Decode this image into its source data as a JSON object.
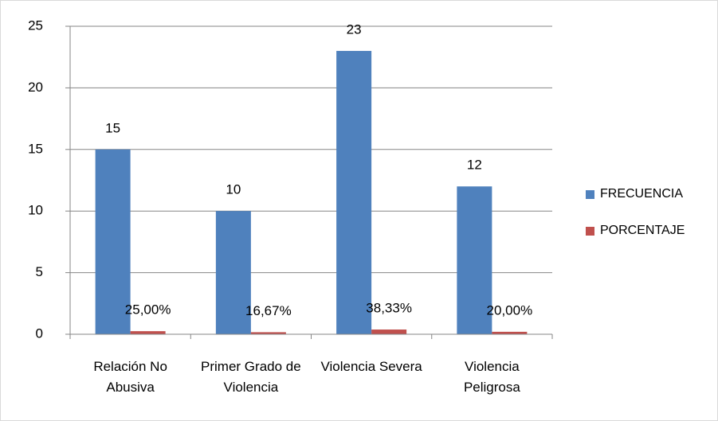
{
  "chart_data": {
    "type": "bar",
    "categories": [
      "Relación No Abusiva",
      "Primer Grado de Violencia",
      "Violencia Severa",
      "Violencia Peligrosa"
    ],
    "series": [
      {
        "name": "FRECUENCIA",
        "color": "#4f81bd",
        "values": [
          15,
          10,
          23,
          12
        ]
      },
      {
        "name": "PORCENTAJE",
        "color": "#c0504d",
        "values": [
          0.25,
          0.1667,
          0.3833,
          0.2
        ],
        "value_labels": [
          "25,00%",
          "16,67%",
          "38,33%",
          "20,00%"
        ]
      }
    ],
    "ylim": [
      0,
      25
    ],
    "yticks": [
      0,
      5,
      10,
      15,
      20,
      25
    ],
    "grid": true,
    "legend": "right"
  }
}
